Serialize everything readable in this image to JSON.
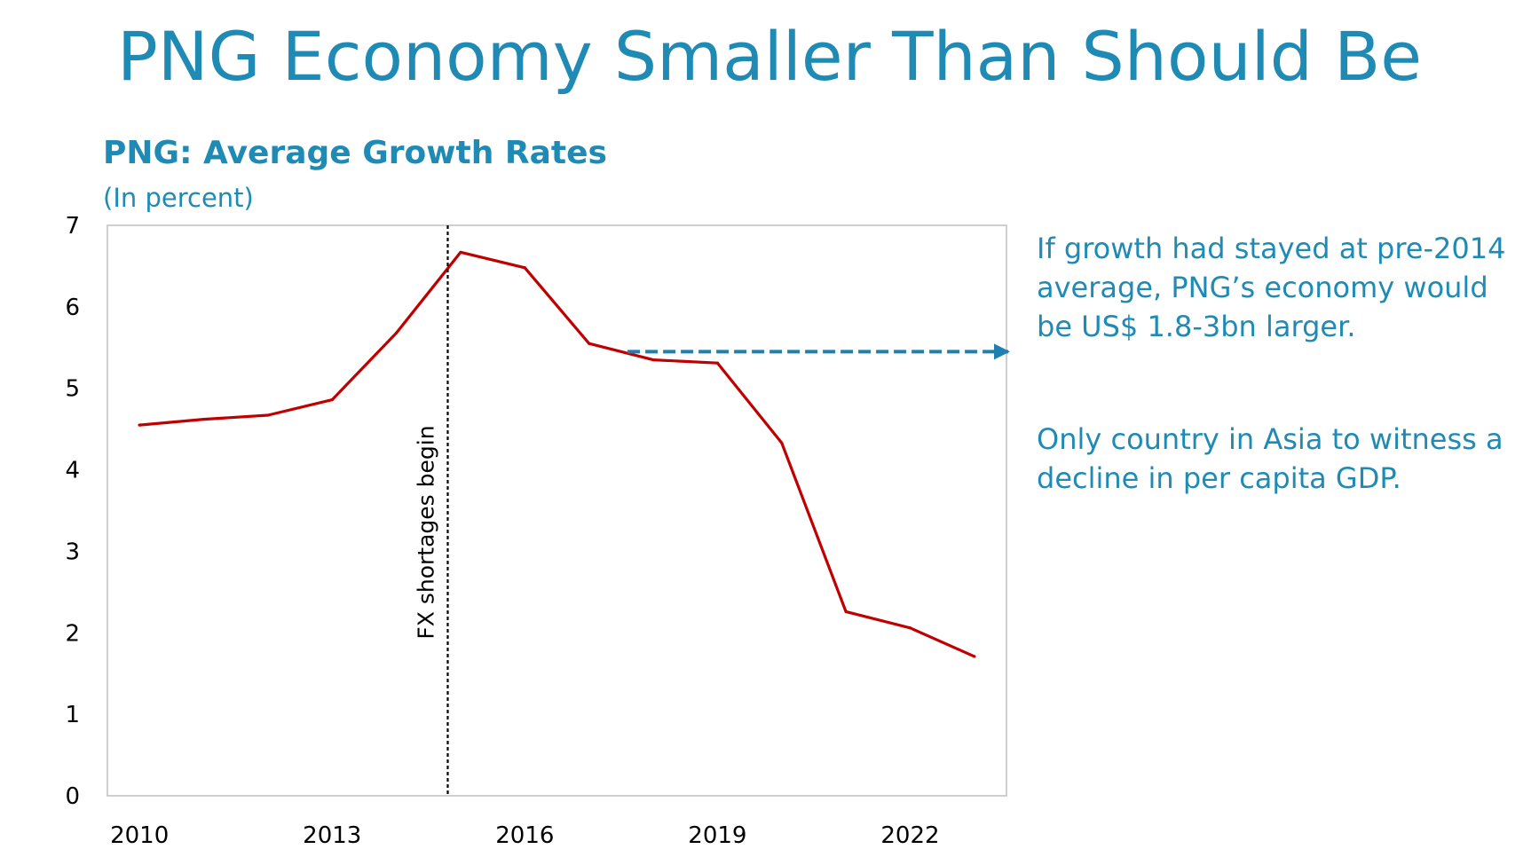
{
  "slide": {
    "title": "PNG Economy Smaller Than Should Be",
    "side_text_1": "If growth had stayed at pre-2014 average, PNG’s economy would be US$ 1.8-3bn larger.",
    "side_text_2": "Only country in Asia to witness a decline in per capita GDP."
  },
  "chart_data": {
    "type": "line",
    "title": "PNG: Average Growth Rates",
    "subtitle": "(In percent)",
    "xlabel": "",
    "ylabel": "",
    "xlim": [
      2009.5,
      2023.5
    ],
    "ylim": [
      0,
      7
    ],
    "x_ticks": [
      2010,
      2013,
      2016,
      2019,
      2022
    ],
    "y_ticks": [
      0,
      1,
      2,
      3,
      4,
      5,
      6,
      7
    ],
    "grid": false,
    "legend": "none",
    "series": [
      {
        "color": "#c00000",
        "x": [
          2010,
          2011,
          2012,
          2013,
          2014,
          2015,
          2016,
          2017,
          2018,
          2019,
          2020,
          2021,
          2022,
          2023
        ],
        "values": [
          4.55,
          4.62,
          4.67,
          4.86,
          5.68,
          6.67,
          6.48,
          5.55,
          5.35,
          5.31,
          4.33,
          2.26,
          2.06,
          1.71
        ]
      }
    ],
    "annotations": [
      {
        "type": "vline",
        "x": 2014.8,
        "text": "FX shortages begin",
        "color": "#000000"
      },
      {
        "type": "arrow",
        "x_start": 2017.6,
        "x_end": 2023.5,
        "y": 5.45,
        "color": "#1f7fb0"
      }
    ]
  }
}
